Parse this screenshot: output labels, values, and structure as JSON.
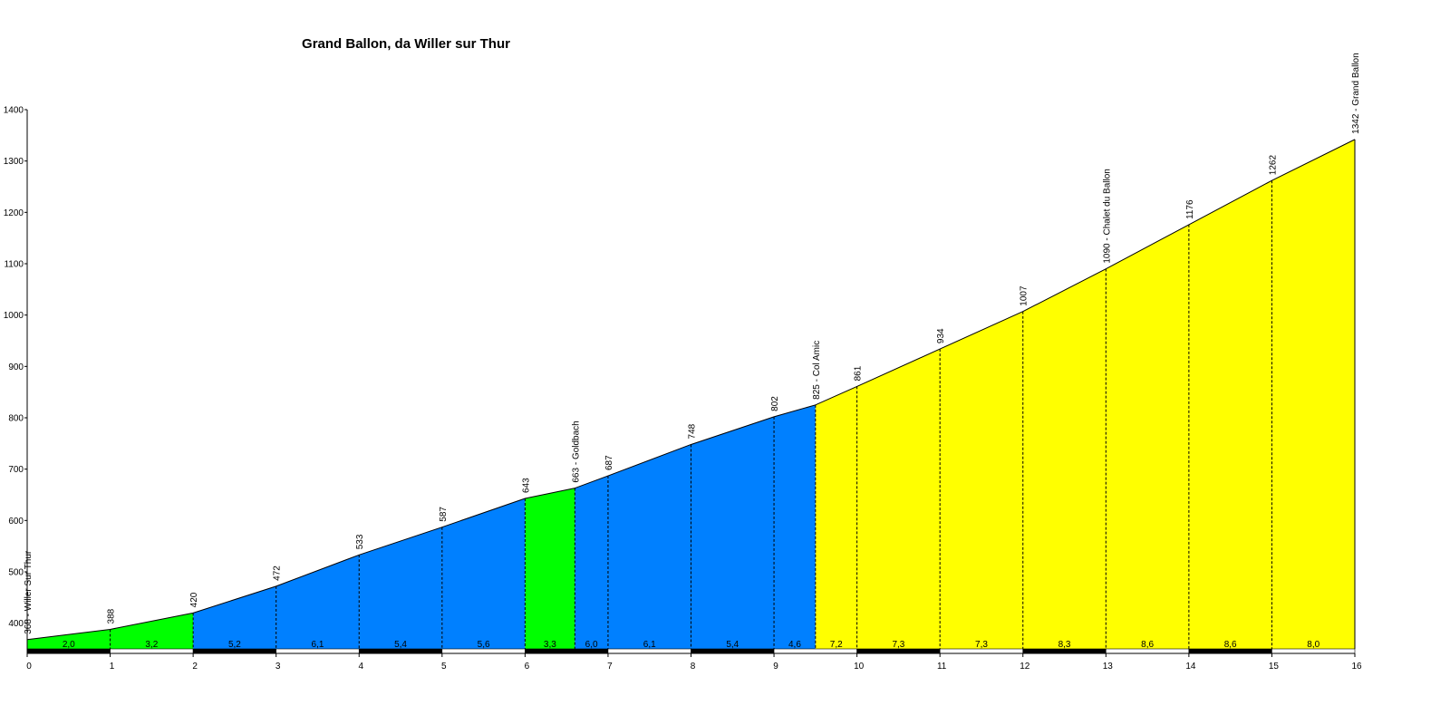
{
  "chart_data": {
    "type": "area",
    "title": "Grand Ballon, da Willer sur Thur",
    "xlabel": "",
    "ylabel": "",
    "xlim": [
      0,
      16
    ],
    "ylim": [
      350,
      1400
    ],
    "x_ticks": [
      0,
      1,
      2,
      3,
      4,
      5,
      6,
      7,
      8,
      9,
      10,
      11,
      12,
      13,
      14,
      15,
      16
    ],
    "y_ticks": [
      400,
      500,
      600,
      700,
      800,
      900,
      1000,
      1100,
      1200,
      1300,
      1400
    ],
    "grid": false,
    "legend": "none",
    "points": [
      {
        "x": 0,
        "y": 368,
        "label": "368 - Willer Sur Thur"
      },
      {
        "x": 1,
        "y": 388,
        "label": "388"
      },
      {
        "x": 2,
        "y": 420,
        "label": "420"
      },
      {
        "x": 3,
        "y": 472,
        "label": "472"
      },
      {
        "x": 4,
        "y": 533,
        "label": "533"
      },
      {
        "x": 5,
        "y": 587,
        "label": "587"
      },
      {
        "x": 6,
        "y": 643,
        "label": "643"
      },
      {
        "x": 6.6,
        "y": 663,
        "label": "663 - Goldbach"
      },
      {
        "x": 7,
        "y": 687,
        "label": "687"
      },
      {
        "x": 8,
        "y": 748,
        "label": "748"
      },
      {
        "x": 9,
        "y": 802,
        "label": "802"
      },
      {
        "x": 9.5,
        "y": 825,
        "label": "825 - Col Amic"
      },
      {
        "x": 10,
        "y": 861,
        "label": "861"
      },
      {
        "x": 11,
        "y": 934,
        "label": "934"
      },
      {
        "x": 12,
        "y": 1007,
        "label": "1007"
      },
      {
        "x": 13,
        "y": 1090,
        "label": "1090 - Chalet du Ballon"
      },
      {
        "x": 14,
        "y": 1176,
        "label": "1176"
      },
      {
        "x": 15,
        "y": 1262,
        "label": "1262"
      },
      {
        "x": 16,
        "y": 1342,
        "label": "1342 - Grand Ballon"
      }
    ],
    "segments": [
      {
        "x0": 0,
        "x1": 1,
        "gradient": "2,0",
        "color": "#00ff00"
      },
      {
        "x0": 1,
        "x1": 2,
        "gradient": "3,2",
        "color": "#00ff00"
      },
      {
        "x0": 2,
        "x1": 3,
        "gradient": "5,2",
        "color": "#0080ff"
      },
      {
        "x0": 3,
        "x1": 4,
        "gradient": "6,1",
        "color": "#0080ff"
      },
      {
        "x0": 4,
        "x1": 5,
        "gradient": "5,4",
        "color": "#0080ff"
      },
      {
        "x0": 5,
        "x1": 6,
        "gradient": "5,6",
        "color": "#0080ff"
      },
      {
        "x0": 6,
        "x1": 6.6,
        "gradient": "3,3",
        "color": "#00ff00"
      },
      {
        "x0": 6.6,
        "x1": 7,
        "gradient": "6,0",
        "color": "#0080ff"
      },
      {
        "x0": 7,
        "x1": 8,
        "gradient": "6,1",
        "color": "#0080ff"
      },
      {
        "x0": 8,
        "x1": 9,
        "gradient": "5,4",
        "color": "#0080ff"
      },
      {
        "x0": 9,
        "x1": 9.5,
        "gradient": "4,6",
        "color": "#0080ff"
      },
      {
        "x0": 9.5,
        "x1": 10,
        "gradient": "7,2",
        "color": "#ffff00"
      },
      {
        "x0": 10,
        "x1": 11,
        "gradient": "7,3",
        "color": "#ffff00"
      },
      {
        "x0": 11,
        "x1": 12,
        "gradient": "7,3",
        "color": "#ffff00"
      },
      {
        "x0": 12,
        "x1": 13,
        "gradient": "8,3",
        "color": "#ffff00"
      },
      {
        "x0": 13,
        "x1": 14,
        "gradient": "8,6",
        "color": "#ffff00"
      },
      {
        "x0": 14,
        "x1": 15,
        "gradient": "8,6",
        "color": "#ffff00"
      },
      {
        "x0": 15,
        "x1": 16,
        "gradient": "8,0",
        "color": "#ffff00"
      }
    ]
  }
}
